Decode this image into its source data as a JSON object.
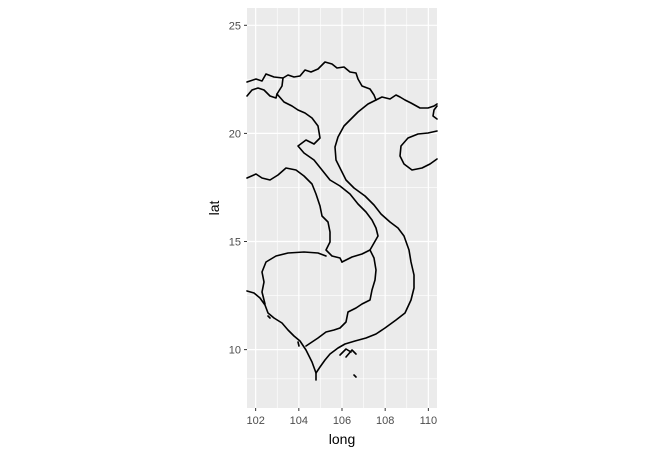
{
  "chart_data": {
    "type": "map",
    "xlabel": "long",
    "ylabel": "lat",
    "xlim": [
      101.6,
      110.4
    ],
    "ylim": [
      7.3,
      25.8
    ],
    "x_ticks": [
      102,
      104,
      106,
      108,
      110
    ],
    "y_ticks": [
      10,
      15,
      20,
      25
    ],
    "grid": true,
    "panel_background": "#ebebeb",
    "grid_color": "#ffffff",
    "line_color": "#000000",
    "tick_label_color": "#4d4d4d"
  }
}
